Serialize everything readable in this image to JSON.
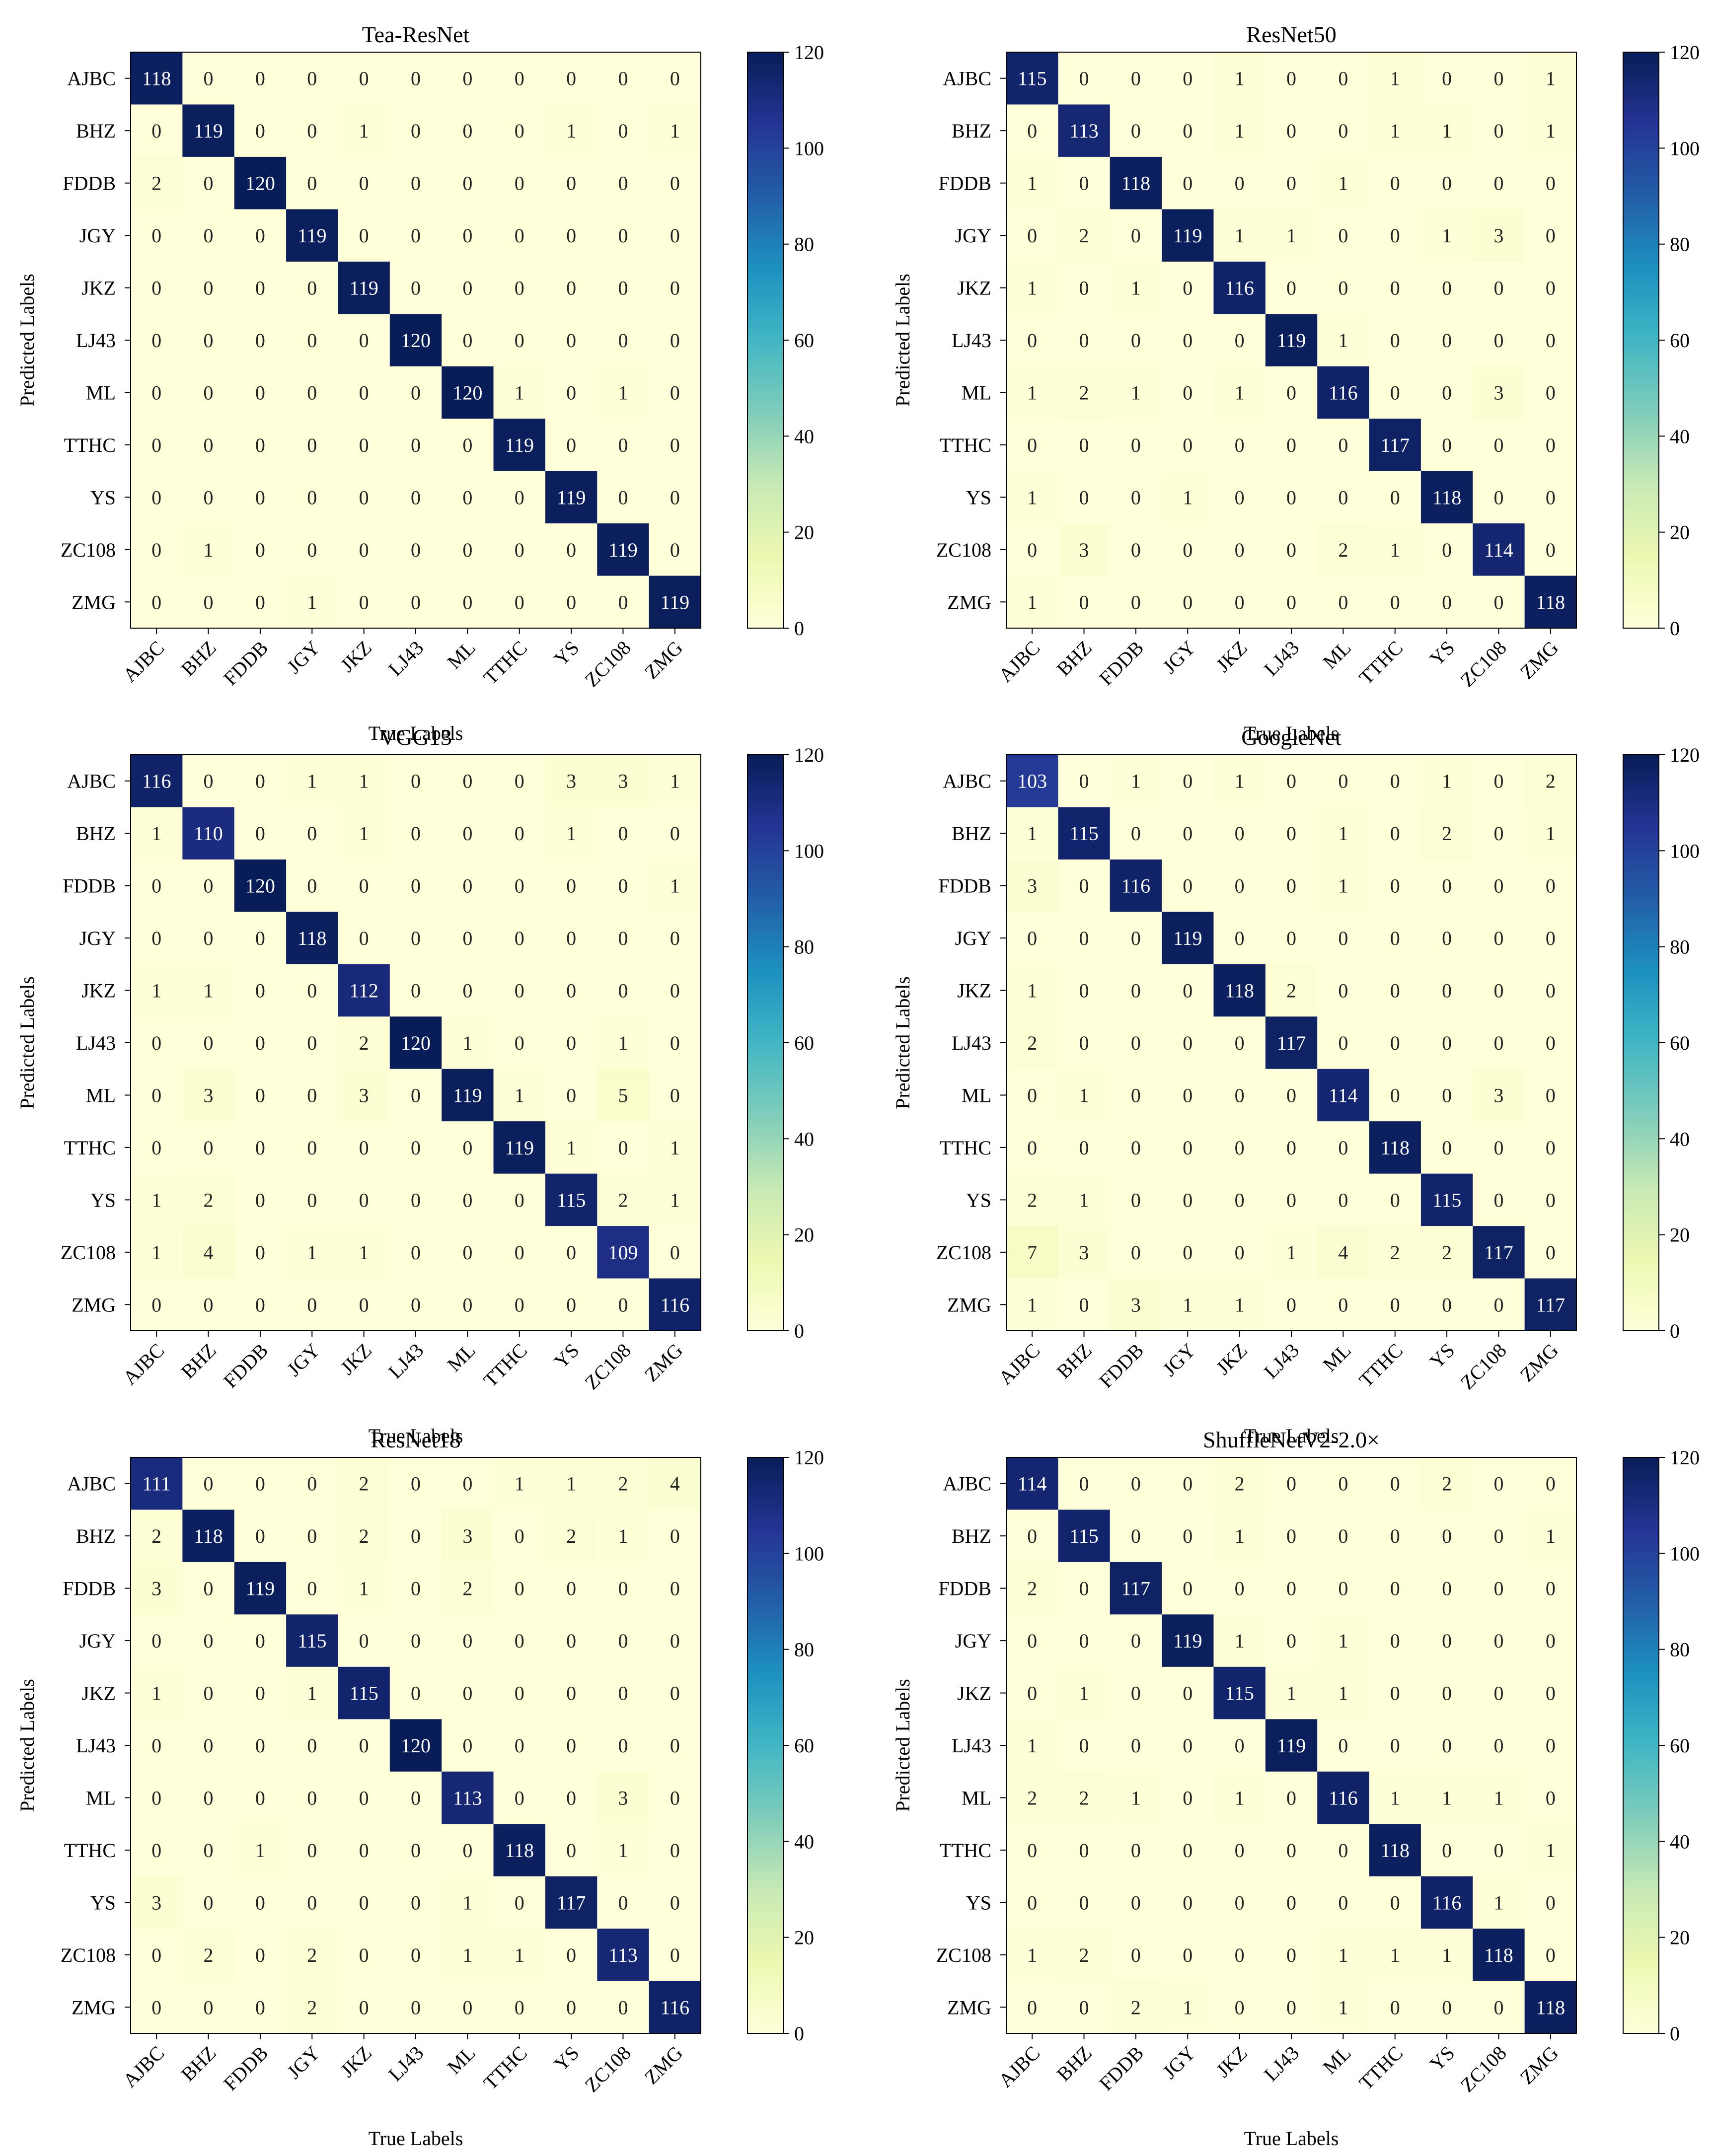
{
  "chart_data": [
    {
      "type": "heatmap",
      "title": "Tea-ResNet",
      "xlabel": "True Labels",
      "ylabel": "Predicted Labels",
      "x_categories": [
        "AJBC",
        "BHZ",
        "FDDB",
        "JGY",
        "JKZ",
        "LJ43",
        "ML",
        "TTHC",
        "YS",
        "ZC108",
        "ZMG"
      ],
      "y_categories": [
        "AJBC",
        "BHZ",
        "FDDB",
        "JGY",
        "JKZ",
        "LJ43",
        "ML",
        "TTHC",
        "YS",
        "ZC108",
        "ZMG"
      ],
      "values": [
        [
          118,
          0,
          0,
          0,
          0,
          0,
          0,
          0,
          0,
          0,
          0
        ],
        [
          0,
          119,
          0,
          0,
          1,
          0,
          0,
          0,
          1,
          0,
          1
        ],
        [
          2,
          0,
          120,
          0,
          0,
          0,
          0,
          0,
          0,
          0,
          0
        ],
        [
          0,
          0,
          0,
          119,
          0,
          0,
          0,
          0,
          0,
          0,
          0
        ],
        [
          0,
          0,
          0,
          0,
          119,
          0,
          0,
          0,
          0,
          0,
          0
        ],
        [
          0,
          0,
          0,
          0,
          0,
          120,
          0,
          0,
          0,
          0,
          0
        ],
        [
          0,
          0,
          0,
          0,
          0,
          0,
          120,
          1,
          0,
          1,
          0
        ],
        [
          0,
          0,
          0,
          0,
          0,
          0,
          0,
          119,
          0,
          0,
          0
        ],
        [
          0,
          0,
          0,
          0,
          0,
          0,
          0,
          0,
          119,
          0,
          0
        ],
        [
          0,
          1,
          0,
          0,
          0,
          0,
          0,
          0,
          0,
          119,
          0
        ],
        [
          0,
          0,
          0,
          1,
          0,
          0,
          0,
          0,
          0,
          0,
          119
        ]
      ],
      "colorbar": {
        "range": [
          0,
          120
        ],
        "ticks": [
          0,
          20,
          40,
          60,
          80,
          100,
          120
        ],
        "colormap": "YlGnBu"
      }
    },
    {
      "type": "heatmap",
      "title": "ResNet50",
      "xlabel": "True Labels",
      "ylabel": "Predicted Labels",
      "x_categories": [
        "AJBC",
        "BHZ",
        "FDDB",
        "JGY",
        "JKZ",
        "LJ43",
        "ML",
        "TTHC",
        "YS",
        "ZC108",
        "ZMG"
      ],
      "y_categories": [
        "AJBC",
        "BHZ",
        "FDDB",
        "JGY",
        "JKZ",
        "LJ43",
        "ML",
        "TTHC",
        "YS",
        "ZC108",
        "ZMG"
      ],
      "values": [
        [
          115,
          0,
          0,
          0,
          1,
          0,
          0,
          1,
          0,
          0,
          1
        ],
        [
          0,
          113,
          0,
          0,
          1,
          0,
          0,
          1,
          1,
          0,
          1
        ],
        [
          1,
          0,
          118,
          0,
          0,
          0,
          1,
          0,
          0,
          0,
          0
        ],
        [
          0,
          2,
          0,
          119,
          1,
          1,
          0,
          0,
          1,
          3,
          0
        ],
        [
          1,
          0,
          1,
          0,
          116,
          0,
          0,
          0,
          0,
          0,
          0
        ],
        [
          0,
          0,
          0,
          0,
          0,
          119,
          1,
          0,
          0,
          0,
          0
        ],
        [
          1,
          2,
          1,
          0,
          1,
          0,
          116,
          0,
          0,
          3,
          0
        ],
        [
          0,
          0,
          0,
          0,
          0,
          0,
          0,
          117,
          0,
          0,
          0
        ],
        [
          1,
          0,
          0,
          1,
          0,
          0,
          0,
          0,
          118,
          0,
          0
        ],
        [
          0,
          3,
          0,
          0,
          0,
          0,
          2,
          1,
          0,
          114,
          0
        ],
        [
          1,
          0,
          0,
          0,
          0,
          0,
          0,
          0,
          0,
          0,
          118
        ]
      ],
      "colorbar": {
        "range": [
          0,
          120
        ],
        "ticks": [
          0,
          20,
          40,
          60,
          80,
          100,
          120
        ],
        "colormap": "YlGnBu"
      }
    },
    {
      "type": "heatmap",
      "title": "VGG13",
      "xlabel": "True Labels",
      "ylabel": "Predicted Labels",
      "x_categories": [
        "AJBC",
        "BHZ",
        "FDDB",
        "JGY",
        "JKZ",
        "LJ43",
        "ML",
        "TTHC",
        "YS",
        "ZC108",
        "ZMG"
      ],
      "y_categories": [
        "AJBC",
        "BHZ",
        "FDDB",
        "JGY",
        "JKZ",
        "LJ43",
        "ML",
        "TTHC",
        "YS",
        "ZC108",
        "ZMG"
      ],
      "values": [
        [
          116,
          0,
          0,
          1,
          1,
          0,
          0,
          0,
          3,
          3,
          1
        ],
        [
          1,
          110,
          0,
          0,
          1,
          0,
          0,
          0,
          1,
          0,
          0
        ],
        [
          0,
          0,
          120,
          0,
          0,
          0,
          0,
          0,
          0,
          0,
          1
        ],
        [
          0,
          0,
          0,
          118,
          0,
          0,
          0,
          0,
          0,
          0,
          0
        ],
        [
          1,
          1,
          0,
          0,
          112,
          0,
          0,
          0,
          0,
          0,
          0
        ],
        [
          0,
          0,
          0,
          0,
          2,
          120,
          1,
          0,
          0,
          1,
          0
        ],
        [
          0,
          3,
          0,
          0,
          3,
          0,
          119,
          1,
          0,
          5,
          0
        ],
        [
          0,
          0,
          0,
          0,
          0,
          0,
          0,
          119,
          1,
          0,
          1
        ],
        [
          1,
          2,
          0,
          0,
          0,
          0,
          0,
          0,
          115,
          2,
          1
        ],
        [
          1,
          4,
          0,
          1,
          1,
          0,
          0,
          0,
          0,
          109,
          0
        ],
        [
          0,
          0,
          0,
          0,
          0,
          0,
          0,
          0,
          0,
          0,
          116
        ]
      ],
      "colorbar": {
        "range": [
          0,
          120
        ],
        "ticks": [
          0,
          20,
          40,
          60,
          80,
          100,
          120
        ],
        "colormap": "YlGnBu"
      }
    },
    {
      "type": "heatmap",
      "title": "GoogleNet",
      "xlabel": "True Labels",
      "ylabel": "Predicted Labels",
      "x_categories": [
        "AJBC",
        "BHZ",
        "FDDB",
        "JGY",
        "JKZ",
        "LJ43",
        "ML",
        "TTHC",
        "YS",
        "ZC108",
        "ZMG"
      ],
      "y_categories": [
        "AJBC",
        "BHZ",
        "FDDB",
        "JGY",
        "JKZ",
        "LJ43",
        "ML",
        "TTHC",
        "YS",
        "ZC108",
        "ZMG"
      ],
      "values": [
        [
          103,
          0,
          1,
          0,
          1,
          0,
          0,
          0,
          1,
          0,
          2
        ],
        [
          1,
          115,
          0,
          0,
          0,
          0,
          1,
          0,
          2,
          0,
          1
        ],
        [
          3,
          0,
          116,
          0,
          0,
          0,
          1,
          0,
          0,
          0,
          0
        ],
        [
          0,
          0,
          0,
          119,
          0,
          0,
          0,
          0,
          0,
          0,
          0
        ],
        [
          1,
          0,
          0,
          0,
          118,
          2,
          0,
          0,
          0,
          0,
          0
        ],
        [
          2,
          0,
          0,
          0,
          0,
          117,
          0,
          0,
          0,
          0,
          0
        ],
        [
          0,
          1,
          0,
          0,
          0,
          0,
          114,
          0,
          0,
          3,
          0
        ],
        [
          0,
          0,
          0,
          0,
          0,
          0,
          0,
          118,
          0,
          0,
          0
        ],
        [
          2,
          1,
          0,
          0,
          0,
          0,
          0,
          0,
          115,
          0,
          0
        ],
        [
          7,
          3,
          0,
          0,
          0,
          1,
          4,
          2,
          2,
          117,
          0
        ],
        [
          1,
          0,
          3,
          1,
          1,
          0,
          0,
          0,
          0,
          0,
          117
        ]
      ],
      "colorbar": {
        "range": [
          0,
          120
        ],
        "ticks": [
          0,
          20,
          40,
          60,
          80,
          100,
          120
        ],
        "colormap": "YlGnBu"
      }
    },
    {
      "type": "heatmap",
      "title": "ResNet18",
      "xlabel": "True Labels",
      "ylabel": "Predicted Labels",
      "x_categories": [
        "AJBC",
        "BHZ",
        "FDDB",
        "JGY",
        "JKZ",
        "LJ43",
        "ML",
        "TTHC",
        "YS",
        "ZC108",
        "ZMG"
      ],
      "y_categories": [
        "AJBC",
        "BHZ",
        "FDDB",
        "JGY",
        "JKZ",
        "LJ43",
        "ML",
        "TTHC",
        "YS",
        "ZC108",
        "ZMG"
      ],
      "values": [
        [
          111,
          0,
          0,
          0,
          2,
          0,
          0,
          1,
          1,
          2,
          4
        ],
        [
          2,
          118,
          0,
          0,
          2,
          0,
          3,
          0,
          2,
          1,
          0
        ],
        [
          3,
          0,
          119,
          0,
          1,
          0,
          2,
          0,
          0,
          0,
          0
        ],
        [
          0,
          0,
          0,
          115,
          0,
          0,
          0,
          0,
          0,
          0,
          0
        ],
        [
          1,
          0,
          0,
          1,
          115,
          0,
          0,
          0,
          0,
          0,
          0
        ],
        [
          0,
          0,
          0,
          0,
          0,
          120,
          0,
          0,
          0,
          0,
          0
        ],
        [
          0,
          0,
          0,
          0,
          0,
          0,
          113,
          0,
          0,
          3,
          0
        ],
        [
          0,
          0,
          1,
          0,
          0,
          0,
          0,
          118,
          0,
          1,
          0
        ],
        [
          3,
          0,
          0,
          0,
          0,
          0,
          1,
          0,
          117,
          0,
          0
        ],
        [
          0,
          2,
          0,
          2,
          0,
          0,
          1,
          1,
          0,
          113,
          0
        ],
        [
          0,
          0,
          0,
          2,
          0,
          0,
          0,
          0,
          0,
          0,
          116
        ]
      ],
      "colorbar": {
        "range": [
          0,
          120
        ],
        "ticks": [
          0,
          20,
          40,
          60,
          80,
          100,
          120
        ],
        "colormap": "YlGnBu"
      }
    },
    {
      "type": "heatmap",
      "title": "ShuffleNetV2-2.0×",
      "xlabel": "True Labels",
      "ylabel": "Predicted Labels",
      "x_categories": [
        "AJBC",
        "BHZ",
        "FDDB",
        "JGY",
        "JKZ",
        "LJ43",
        "ML",
        "TTHC",
        "YS",
        "ZC108",
        "ZMG"
      ],
      "y_categories": [
        "AJBC",
        "BHZ",
        "FDDB",
        "JGY",
        "JKZ",
        "LJ43",
        "ML",
        "TTHC",
        "YS",
        "ZC108",
        "ZMG"
      ],
      "values": [
        [
          114,
          0,
          0,
          0,
          2,
          0,
          0,
          0,
          2,
          0,
          0
        ],
        [
          0,
          115,
          0,
          0,
          1,
          0,
          0,
          0,
          0,
          0,
          1
        ],
        [
          2,
          0,
          117,
          0,
          0,
          0,
          0,
          0,
          0,
          0,
          0
        ],
        [
          0,
          0,
          0,
          119,
          1,
          0,
          1,
          0,
          0,
          0,
          0
        ],
        [
          0,
          1,
          0,
          0,
          115,
          1,
          1,
          0,
          0,
          0,
          0
        ],
        [
          1,
          0,
          0,
          0,
          0,
          119,
          0,
          0,
          0,
          0,
          0
        ],
        [
          2,
          2,
          1,
          0,
          1,
          0,
          116,
          1,
          1,
          1,
          0
        ],
        [
          0,
          0,
          0,
          0,
          0,
          0,
          0,
          118,
          0,
          0,
          1
        ],
        [
          0,
          0,
          0,
          0,
          0,
          0,
          0,
          0,
          116,
          1,
          0
        ],
        [
          1,
          2,
          0,
          0,
          0,
          0,
          1,
          1,
          1,
          118,
          0
        ],
        [
          0,
          0,
          2,
          1,
          0,
          0,
          1,
          0,
          0,
          0,
          118
        ]
      ],
      "colorbar": {
        "range": [
          0,
          120
        ],
        "ticks": [
          0,
          20,
          40,
          60,
          80,
          100,
          120
        ],
        "colormap": "YlGnBu"
      }
    }
  ]
}
